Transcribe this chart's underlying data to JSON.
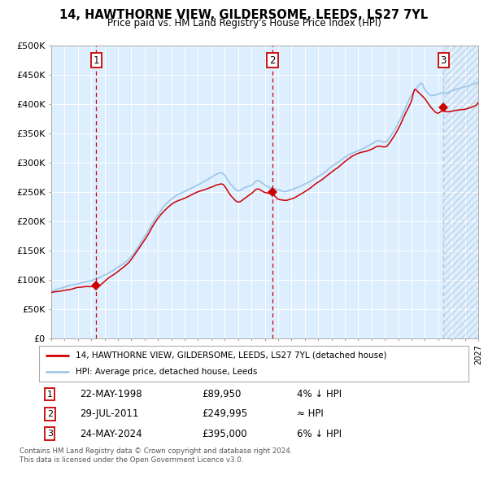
{
  "title": "14, HAWTHORNE VIEW, GILDERSOME, LEEDS, LS27 7YL",
  "subtitle": "Price paid vs. HM Land Registry's House Price Index (HPI)",
  "legend_line1": "14, HAWTHORNE VIEW, GILDERSOME, LEEDS, LS27 7YL (detached house)",
  "legend_line2": "HPI: Average price, detached house, Leeds",
  "hpi_color": "#a0c8e8",
  "price_color": "#cc0000",
  "marker_color": "#cc0000",
  "bg_color": "#ddeeff",
  "grid_color": "#ffffff",
  "vline_color_red": "#cc0000",
  "vline_color_blue": "#a0c8e8",
  "sale1_date": 1998.38,
  "sale1_price": 89950,
  "sale2_date": 2011.57,
  "sale2_price": 249995,
  "sale3_date": 2024.39,
  "sale3_price": 395000,
  "xmin": 1995.0,
  "xmax": 2027.0,
  "ymin": 0,
  "ymax": 500000,
  "yticks": [
    0,
    50000,
    100000,
    150000,
    200000,
    250000,
    300000,
    350000,
    400000,
    450000,
    500000
  ],
  "footer1": "Contains HM Land Registry data © Crown copyright and database right 2024.",
  "footer2": "This data is licensed under the Open Government Licence v3.0.",
  "hatch_start": 2024.39,
  "sale1_date_str": "22-MAY-1998",
  "sale1_price_str": "£89,950",
  "sale1_pct": "4% ↓ HPI",
  "sale2_date_str": "29-JUL-2011",
  "sale2_price_str": "£249,995",
  "sale2_pct": "≈ HPI",
  "sale3_date_str": "24-MAY-2024",
  "sale3_price_str": "£395,000",
  "sale3_pct": "6% ↓ HPI"
}
